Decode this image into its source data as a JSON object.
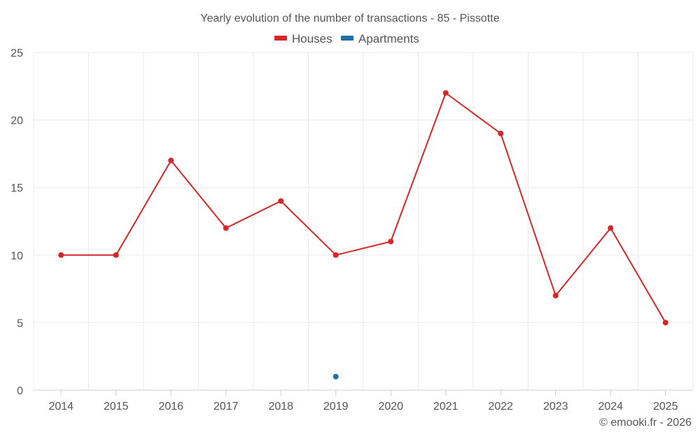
{
  "chart_data": {
    "type": "line",
    "title": "Yearly evolution of the number of transactions - 85 - Pissotte",
    "categories": [
      "2014",
      "2015",
      "2016",
      "2017",
      "2018",
      "2019",
      "2020",
      "2021",
      "2022",
      "2023",
      "2024",
      "2025"
    ],
    "yticks": [
      "0",
      "5",
      "10",
      "15",
      "20",
      "25"
    ],
    "ylim": [
      0,
      25
    ],
    "grid": true,
    "legend_position": "top-center",
    "series": [
      {
        "name": "Houses",
        "color": "#d62728",
        "values": [
          10,
          10,
          17,
          12,
          14,
          10,
          11,
          22,
          19,
          7,
          12,
          5
        ]
      },
      {
        "name": "Apartments",
        "color": "#1f6fa8",
        "values": [
          null,
          null,
          null,
          null,
          null,
          1,
          null,
          null,
          null,
          null,
          null,
          null
        ]
      }
    ],
    "credit": "© emooki.fr - 2026"
  }
}
